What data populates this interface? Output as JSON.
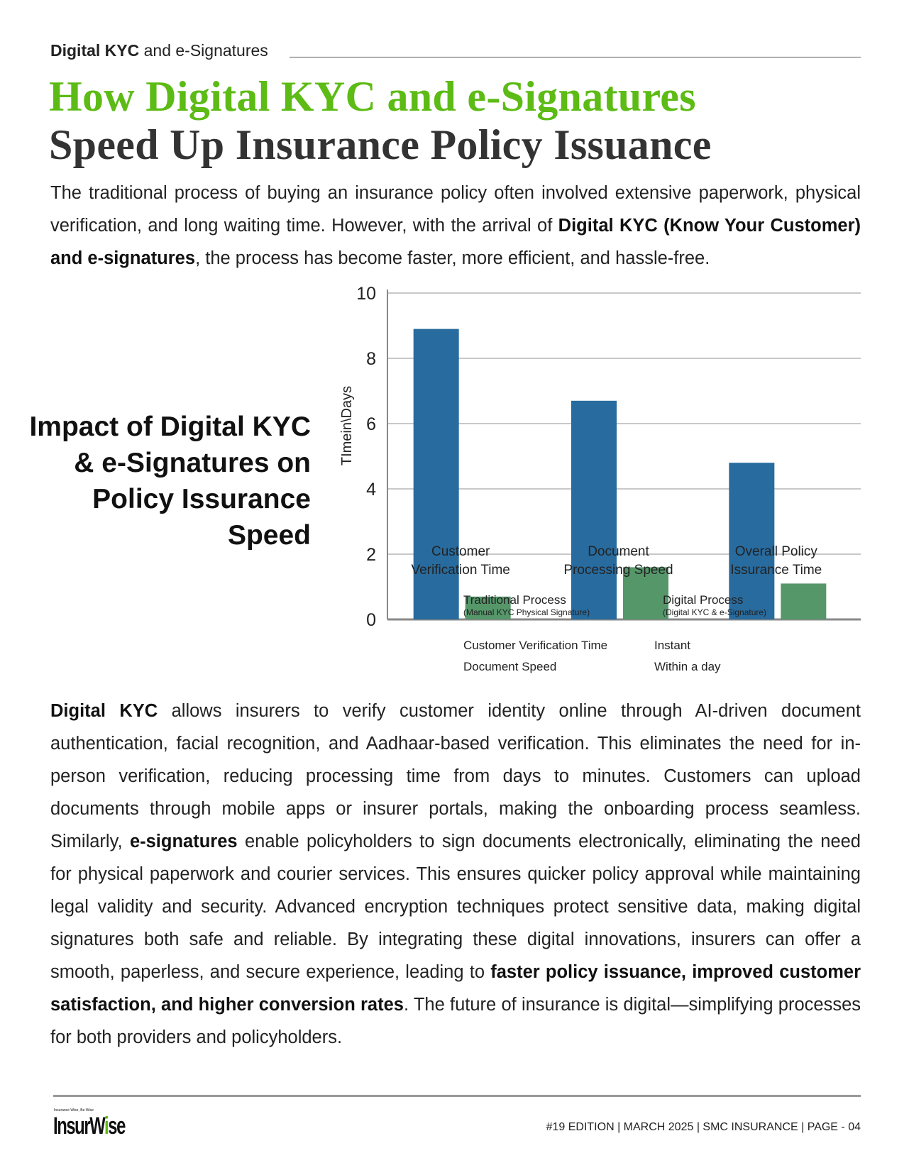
{
  "header": {
    "kicker_bold": "Digital KYC",
    "kicker_rest": " and e-Signatures"
  },
  "title": {
    "line1": "How Digital KYC and e-Signatures",
    "line2": "Speed Up Insurance Policy Issuance"
  },
  "intro": {
    "s1": "The traditional process of buying an insurance policy often involved extensive paperwork, physical verification, and long waiting time. However, with the arrival of ",
    "b1": "Digital KYC (Know Your Customer) and e-signatures",
    "s2": ", the process has become faster, more efficient, and hassle-free."
  },
  "side_heading": "Impact of Digital KYC & e-Signatures on Policy Issurance Speed",
  "chart_data": {
    "type": "bar",
    "categories": [
      "Customer Verification Time",
      "Document Processing Speed",
      "Overall Policy Issurance Time"
    ],
    "category_lines": [
      [
        "Customer",
        "Verification Time"
      ],
      [
        "Document",
        "Processing Speed"
      ],
      [
        "Overall Policy",
        "Issurance Time"
      ]
    ],
    "series": [
      {
        "name": "Traditional Process",
        "note": "(Manual KYC Physical Signature)",
        "color": "#286b9e",
        "values": [
          8.9,
          6.7,
          4.8
        ]
      },
      {
        "name": "Digital Process",
        "note": "(Digital KYC & e-Signature)",
        "color": "#56976a",
        "values": [
          0.7,
          1.6,
          1.1
        ]
      }
    ],
    "ylabel": "TImein\\Days",
    "ylim": [
      0,
      10
    ],
    "yticks": [
      0,
      2,
      4,
      6,
      8,
      10
    ],
    "grid": true,
    "legend": "bottom"
  },
  "summary_table": [
    [
      "Customer Verification Time",
      "Instant"
    ],
    [
      "Document Speed",
      "Within a day"
    ]
  ],
  "body": {
    "b1": "Digital KYC",
    "s1": " allows insurers to verify customer identity online through AI-driven document authentication, facial recognition, and Aadhaar-based verification. This eliminates the need for in-person verification, reducing processing time from days to minutes. Customers can upload documents through mobile apps or insurer portals, making the onboarding process seamless. Similarly, ",
    "b2": "e-signatures",
    "s2": " enable policyholders to sign documents electronically, eliminating the need for physical paperwork and courier services. This ensures quicker policy approval while maintaining legal validity and security. Advanced encryption techniques protect sensitive data, making digital signatures both safe and reliable. By integrating these digital innovations, insurers can offer a smooth, paperless, and secure experience, leading to ",
    "b3": "faster policy issuance, improved customer satisfaction, and higher conversion rates",
    "s3": ". The future of insurance is digital—simplifying processes for both providers and policyholders."
  },
  "footer": {
    "logo_pre": "Insur",
    "logo_w": "W",
    "logo_i": "i",
    "logo_post": "se",
    "logo_tag": "Insurance Wise, Be Wise",
    "text": "#19 EDITION | MARCH 2025 | SMC INSURANCE | PAGE - 04"
  }
}
